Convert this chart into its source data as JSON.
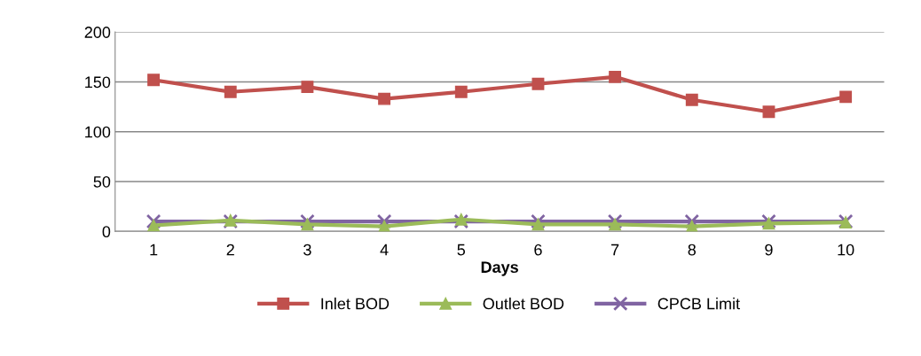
{
  "chart_data": {
    "type": "line",
    "xlabel": "Days",
    "categories": [
      "1",
      "2",
      "3",
      "4",
      "5",
      "6",
      "7",
      "8",
      "9",
      "10"
    ],
    "series": [
      {
        "name": "Inlet BOD",
        "color": "#c0504d",
        "marker": "square",
        "values": [
          152,
          140,
          145,
          133,
          140,
          148,
          155,
          132,
          120,
          135
        ]
      },
      {
        "name": "Outlet BOD",
        "color": "#9bbb59",
        "marker": "triangle",
        "values": [
          6,
          11,
          7,
          5,
          12,
          7,
          7,
          5,
          8,
          9
        ]
      },
      {
        "name": "CPCB Limit",
        "color": "#8064a2",
        "marker": "cross",
        "values": [
          10,
          10,
          10,
          10,
          10,
          10,
          10,
          10,
          10,
          10
        ]
      }
    ],
    "ylim": [
      0,
      200
    ],
    "yticks": [
      0,
      50,
      100,
      150,
      200
    ],
    "grid": "y",
    "legend": "bottom"
  }
}
